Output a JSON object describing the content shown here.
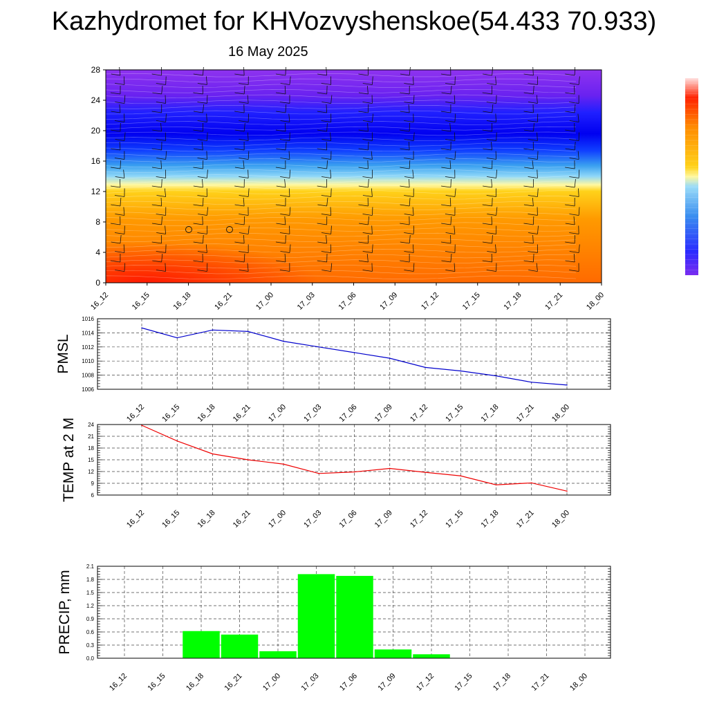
{
  "title": "Kazhydromet for KHVozvyshenskoe(54.433 70.933)",
  "subtitle": "16 May 2025",
  "chart_data": [
    {
      "type": "heatmap",
      "ylim": [
        0,
        28
      ],
      "yticks": [
        "0",
        "4",
        "8",
        "12",
        "16",
        "20",
        "24",
        "28"
      ],
      "x_categories": [
        "16_12",
        "16_15",
        "16_18",
        "16_21",
        "17_00",
        "17_03",
        "17_06",
        "17_09",
        "17_12",
        "17_15",
        "17_18",
        "17_21",
        "18_00"
      ],
      "colors": {
        "low": "#ff1a00",
        "mid": "#ffcc00",
        "cold": "#0000ff",
        "top": "#8a2be2"
      }
    },
    {
      "type": "line",
      "ylabel": "PMSL",
      "ylim": [
        1006,
        1016
      ],
      "yticks": [
        "1006",
        "1008",
        "1010",
        "1012",
        "1014",
        "1016"
      ],
      "categories": [
        "16_12",
        "16_15",
        "16_18",
        "16_21",
        "17_00",
        "17_03",
        "17_06",
        "17_09",
        "17_12",
        "17_15",
        "17_18",
        "17_21",
        "18_00"
      ],
      "values": [
        1014.7,
        1013.3,
        1014.4,
        1014.2,
        1012.8,
        1012.0,
        1011.2,
        1010.4,
        1009.1,
        1008.6,
        1007.9,
        1007.0,
        1006.6
      ],
      "color": "#0000cc"
    },
    {
      "type": "line",
      "ylabel": "TEMP at 2 M",
      "ylim": [
        6,
        24
      ],
      "yticks": [
        "6",
        "9",
        "12",
        "15",
        "18",
        "21",
        "24"
      ],
      "categories": [
        "16_12",
        "16_15",
        "16_18",
        "16_21",
        "17_00",
        "17_03",
        "17_06",
        "17_09",
        "17_12",
        "17_15",
        "17_18",
        "17_21",
        "18_00"
      ],
      "values": [
        23.8,
        19.8,
        16.5,
        15.0,
        13.9,
        11.5,
        11.9,
        12.8,
        11.8,
        10.9,
        8.6,
        9.1,
        7.0
      ],
      "color": "#ee0000"
    },
    {
      "type": "bar",
      "ylabel": "PRECIP, mm",
      "ylim": [
        0,
        2.1
      ],
      "yticks": [
        "0.0",
        "0.3",
        "0.6",
        "0.9",
        "1.2",
        "1.5",
        "1.8",
        "2.1"
      ],
      "categories": [
        "16_12",
        "16_15",
        "16_18",
        "16_21",
        "17_00",
        "17_03",
        "17_06",
        "17_09",
        "17_12",
        "17_15",
        "17_18",
        "17_21",
        "18_00"
      ],
      "values": [
        0,
        0,
        0.62,
        0.54,
        0.16,
        1.92,
        1.88,
        0.2,
        0.09,
        0,
        0,
        0,
        0
      ],
      "color": "#00ff00"
    }
  ]
}
